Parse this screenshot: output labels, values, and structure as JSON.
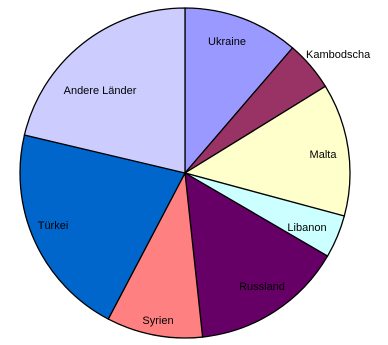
{
  "chart_data": {
    "type": "pie",
    "start_angle_deg": 0,
    "direction": "clockwise",
    "slices": [
      {
        "label": "Ukraine",
        "value": 11.3,
        "color": "#9999ff"
      },
      {
        "label": "Kambodscha",
        "value": 4.9,
        "color": "#993366"
      },
      {
        "label": "Malta",
        "value": 13.0,
        "color": "#ffffcc"
      },
      {
        "label": "Libanon",
        "value": 4.2,
        "color": "#ccffff"
      },
      {
        "label": "Russland",
        "value": 14.9,
        "color": "#660066"
      },
      {
        "label": "Syrien",
        "value": 9.4,
        "color": "#ff8080"
      },
      {
        "label": "Türkei",
        "value": 21.0,
        "color": "#0066cc"
      },
      {
        "label": "Andere Länder",
        "value": 21.3,
        "color": "#ccccff"
      }
    ]
  }
}
